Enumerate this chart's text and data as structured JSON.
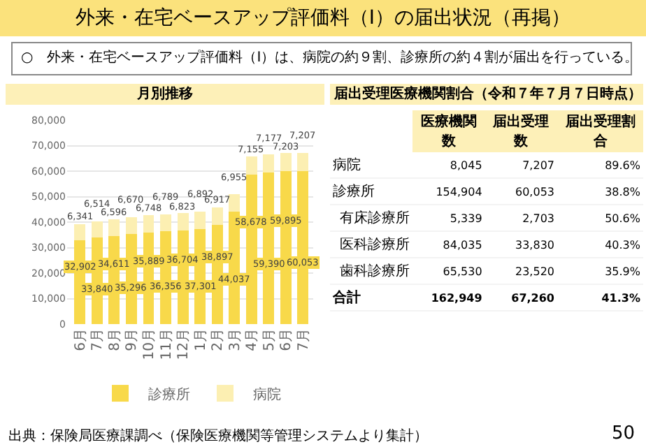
{
  "chart_data": [
    {
      "type": "bar",
      "title": "月別推移",
      "categories": [
        "6月",
        "7月",
        "8月",
        "9月",
        "10月",
        "11月",
        "12月",
        "1月",
        "2月",
        "3月",
        "4月",
        "5月",
        "6月",
        "7月"
      ],
      "series": [
        {
          "name": "診療所",
          "color": "#f8d94a",
          "values": [
            32902,
            33840,
            34611,
            35296,
            35889,
            36356,
            36704,
            37301,
            38897,
            44037,
            58678,
            59390,
            59895,
            60053
          ],
          "value_labels": [
            "32,902",
            "33,840",
            "34,611",
            "35,296",
            "35,889",
            "36,356",
            "36,704",
            "37,301",
            "38,897",
            "44,037",
            "58,678",
            "59,390",
            "59,895",
            "60,053"
          ]
        },
        {
          "name": "病院",
          "color": "#fcefb2",
          "values": [
            6341,
            6514,
            6596,
            6670,
            6748,
            6789,
            6823,
            6892,
            6917,
            6955,
            7155,
            7177,
            7203,
            7207
          ],
          "value_labels": [
            "6,341",
            "6,514",
            "6,596",
            "6,670",
            "6,748",
            "6,789",
            "6,823",
            "6,892",
            "6,917",
            "6,955",
            "7,155",
            "7,177",
            "7,203",
            "7,207"
          ]
        }
      ],
      "stacked": true,
      "ylim": [
        0,
        80000
      ],
      "yticks": [
        0,
        {
          "value": 10000,
          "label": "10,000"
        },
        {
          "value": 20000,
          "label": "20,000"
        },
        {
          "value": 30000,
          "label": "30,000"
        },
        {
          "value": 40000,
          "label": "40,000"
        },
        {
          "value": 50000,
          "label": "50,000"
        },
        {
          "value": 60000,
          "label": "60,000"
        },
        {
          "value": 70000,
          "label": "70,000"
        },
        {
          "value": 80000,
          "label": "80,000"
        }
      ],
      "grid": "y",
      "legend": "bottom",
      "annotations": [
        "外来・在宅ベースアップ評価料（Ⅰ）の届出状況（再掲）",
        "○　外来・在宅ベースアップ評価料（Ⅰ）は、病院の約９割、診療所の約４割が届出を行っている。",
        "出典：保険局医療課調べ（保険医療機関等管理システムより集計）",
        "50"
      ]
    },
    {
      "type": "other",
      "title": "届出受理医療機関割合（令和７年７月７日時点）",
      "categories": [
        "医療機関数",
        "届出受理数",
        "届出受理割合"
      ],
      "y_categories": [
        "病院",
        "診療所",
        "有床診療所",
        "医科診療所",
        "歯科診療所",
        "合計"
      ],
      "cell_labels": [
        [
          "8,045",
          "7,207",
          "89.6%"
        ],
        [
          "154,904",
          "60,053",
          "38.8%"
        ],
        [
          "5,339",
          "2,703",
          "50.6%"
        ],
        [
          "84,035",
          "33,830",
          "40.3%"
        ],
        [
          "65,530",
          "23,520",
          "35.9%"
        ],
        [
          "162,949",
          "67,260",
          "41.3%"
        ]
      ]
    }
  ]
}
